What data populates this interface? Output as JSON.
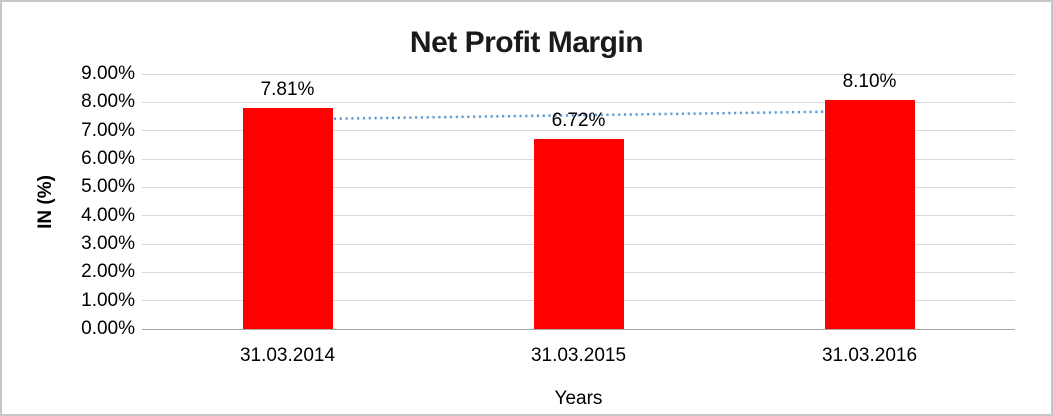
{
  "chart_data": {
    "type": "bar",
    "title": "Net Profit Margin",
    "xlabel": "Years",
    "ylabel": "IN (%)",
    "categories": [
      "31.03.2014",
      "31.03.2015",
      "31.03.2016"
    ],
    "values": [
      7.81,
      6.72,
      8.1
    ],
    "data_labels": [
      "7.81%",
      "6.72%",
      "8.10%"
    ],
    "ylim": [
      0,
      9
    ],
    "ytick_step": 1,
    "ytick_labels": [
      "0.00%",
      "1.00%",
      "2.00%",
      "3.00%",
      "4.00%",
      "5.00%",
      "6.00%",
      "7.00%",
      "8.00%",
      "9.00%"
    ],
    "grid": true,
    "legend": false,
    "bar_color": "#FF0000",
    "trendline": {
      "type": "linear",
      "style": "dotted",
      "color": "#5B9BD5",
      "start_value": 7.4,
      "end_value": 7.69
    }
  }
}
